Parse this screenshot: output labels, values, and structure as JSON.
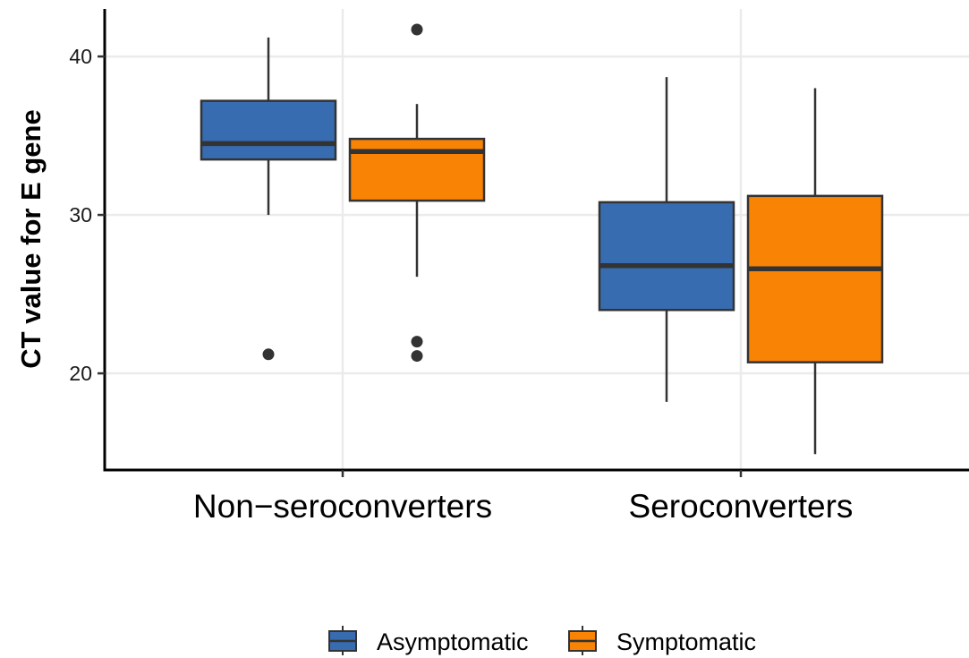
{
  "chart_data": {
    "type": "boxplot",
    "ylabel": "CT value for E gene",
    "xlabel": "",
    "ylim": [
      13.9,
      43
    ],
    "yticks": [
      20,
      30,
      40
    ],
    "grid": true,
    "legend_position": "bottom",
    "categories": [
      "Non−seroconverters",
      "Seroconverters"
    ],
    "series": [
      {
        "name": "Asymptomatic",
        "color": "#386CB0",
        "boxes": [
          {
            "category": "Non−seroconverters",
            "whisker_low": 30.0,
            "q1": 33.5,
            "median": 34.5,
            "q3": 37.2,
            "whisker_high": 41.2,
            "outliers": [
              21.2
            ]
          },
          {
            "category": "Seroconverters",
            "whisker_low": 18.2,
            "q1": 24.0,
            "median": 26.8,
            "q3": 30.8,
            "whisker_high": 38.7,
            "outliers": []
          }
        ]
      },
      {
        "name": "Symptomatic",
        "color": "#F98304",
        "boxes": [
          {
            "category": "Non−seroconverters",
            "whisker_low": 26.1,
            "q1": 30.9,
            "median": 34.0,
            "q3": 34.8,
            "whisker_high": 37.0,
            "outliers": [
              41.7,
              22.0,
              21.1
            ]
          },
          {
            "category": "Seroconverters",
            "whisker_low": 14.9,
            "q1": 20.7,
            "median": 26.6,
            "q3": 31.2,
            "whisker_high": 38.0,
            "outliers": []
          }
        ]
      }
    ]
  }
}
